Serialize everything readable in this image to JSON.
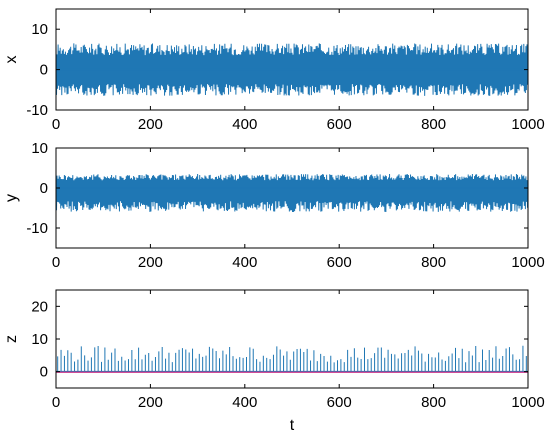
{
  "chart_data": [
    {
      "type": "line",
      "ylabel": "x",
      "xlabel": "",
      "xlim": [
        0,
        1000
      ],
      "ylim": [
        -10,
        15
      ],
      "xticks": [
        0,
        200,
        400,
        600,
        800,
        1000
      ],
      "yticks": [
        -10,
        0,
        10
      ],
      "grid": false,
      "series": [
        {
          "color": "#1f77b4",
          "envelope_min": -6.5,
          "envelope_max": 6.5,
          "center": 0
        }
      ]
    },
    {
      "type": "line",
      "ylabel": "y",
      "xlabel": "",
      "xlim": [
        0,
        1000
      ],
      "ylim": [
        -15,
        10
      ],
      "xticks": [
        0,
        200,
        400,
        600,
        800,
        1000
      ],
      "yticks": [
        -10,
        0,
        10
      ],
      "grid": false,
      "series": [
        {
          "color": "#1f77b4",
          "envelope_min": -6,
          "envelope_max": 3.5,
          "center": 0
        }
      ]
    },
    {
      "type": "line",
      "ylabel": "z",
      "xlabel": "t",
      "xlim": [
        0,
        1000
      ],
      "ylim": [
        -5,
        25
      ],
      "xticks": [
        0,
        200,
        400,
        600,
        800,
        1000
      ],
      "yticks": [
        0,
        10,
        20
      ],
      "grid": false,
      "series": [
        {
          "color": "#1f77b4",
          "baseline": 0,
          "spike_max": 8
        },
        {
          "color": "#cc3388",
          "baseline": 0
        }
      ]
    }
  ]
}
